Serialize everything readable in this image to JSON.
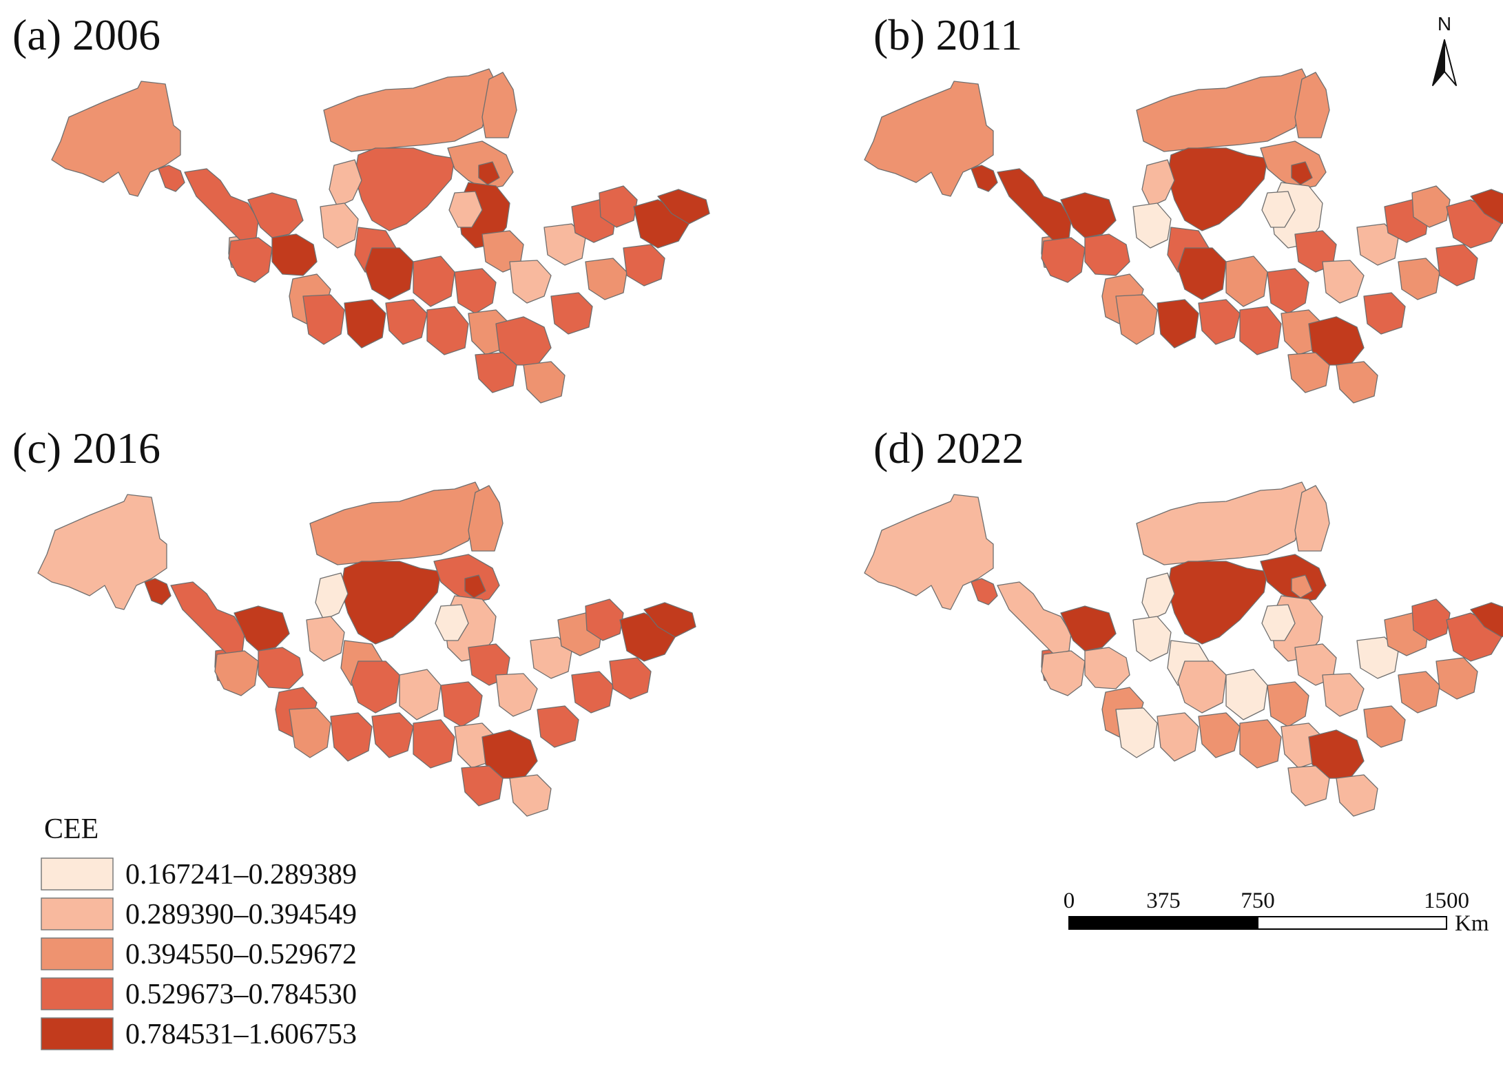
{
  "panels": [
    {
      "title": "(a) 2006"
    },
    {
      "title": "(b) 2011"
    },
    {
      "title": "(c) 2016"
    },
    {
      "title": "(d) 2022"
    }
  ],
  "legend": {
    "title": "CEE",
    "classes": [
      {
        "label": "0.167241–0.289389",
        "color": "#fde9d9"
      },
      {
        "label": "0.289390–0.394549",
        "color": "#f8b99e"
      },
      {
        "label": "0.394550–0.529672",
        "color": "#ee9370"
      },
      {
        "label": "0.529673–0.784530",
        "color": "#e2654a"
      },
      {
        "label": "0.784531–1.606753",
        "color": "#c23b1d"
      }
    ]
  },
  "scale_bar": {
    "ticks": [
      "0",
      "375",
      "750",
      "1500"
    ],
    "unit": "Km"
  },
  "north_arrow": {
    "label": "N",
    "icon": "north-arrow-icon"
  },
  "class_by_year": [
    [
      2,
      1,
      2,
      3,
      3,
      3,
      3,
      2,
      2,
      4,
      4,
      3,
      4,
      2,
      1,
      1,
      3,
      1,
      4,
      3,
      4,
      3,
      3,
      3,
      2,
      1,
      3,
      2,
      1,
      3,
      3,
      4,
      2,
      3,
      3,
      2,
      4,
      3,
      3
    ],
    [
      2,
      2,
      2,
      4,
      4,
      4,
      4,
      2,
      2,
      4,
      0,
      3,
      3,
      2,
      1,
      0,
      3,
      0,
      4,
      2,
      4,
      2,
      3,
      3,
      3,
      1,
      3,
      2,
      1,
      3,
      2,
      3,
      2,
      3,
      4,
      2,
      4,
      3,
      2
    ],
    [
      1,
      3,
      2,
      4,
      3,
      4,
      4,
      3,
      2,
      4,
      1,
      2,
      3,
      3,
      0,
      1,
      2,
      0,
      3,
      2,
      3,
      1,
      3,
      3,
      3,
      1,
      3,
      1,
      1,
      2,
      3,
      4,
      3,
      3,
      4,
      1,
      4,
      3,
      3
    ],
    [
      1,
      3,
      1,
      3,
      1,
      4,
      4,
      4,
      1,
      2,
      1,
      1,
      1,
      2,
      0,
      0,
      0,
      0,
      1,
      0,
      1,
      0,
      2,
      2,
      1,
      1,
      2,
      1,
      0,
      2,
      3,
      3,
      2,
      2,
      4,
      1,
      4,
      2,
      1
    ]
  ]
}
